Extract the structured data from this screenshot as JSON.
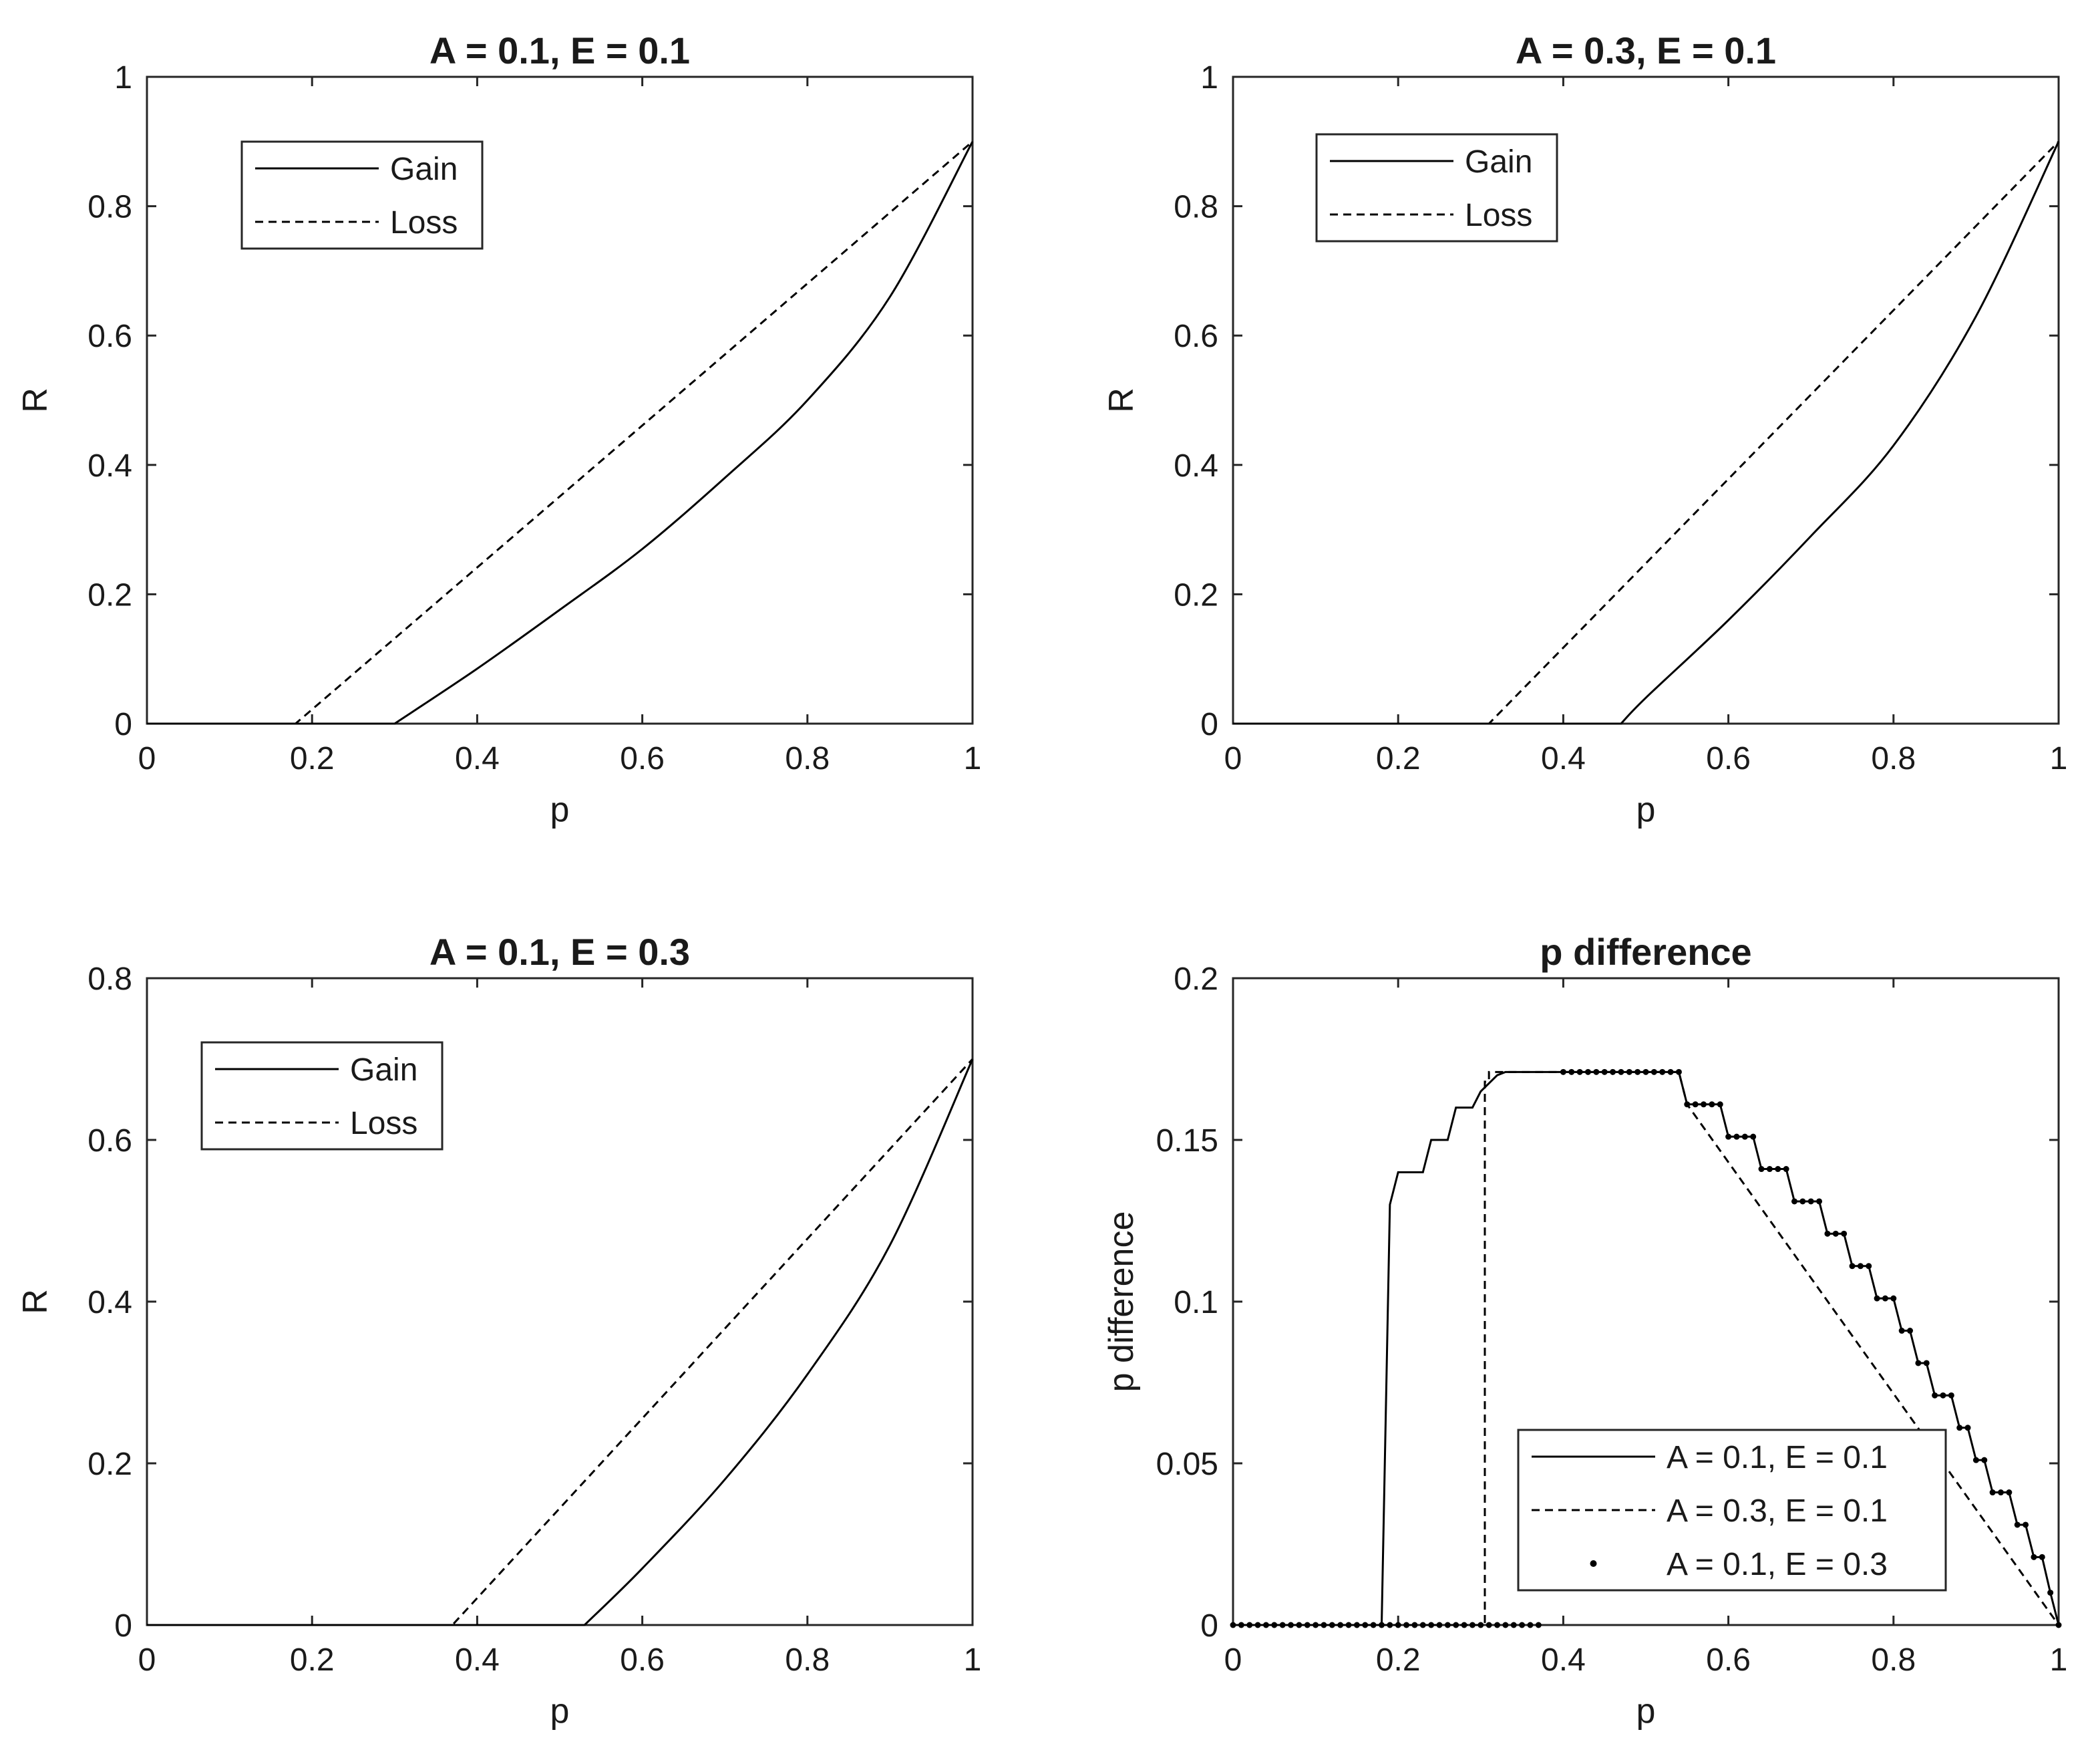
{
  "chart_data": [
    {
      "type": "line",
      "title": "A = 0.1, E = 0.1",
      "xlabel": "p",
      "ylabel": "R",
      "xlim": [
        0,
        1
      ],
      "ylim": [
        0,
        1
      ],
      "xticks": [
        "0",
        "0.2",
        "0.4",
        "0.6",
        "0.8",
        "1"
      ],
      "yticks": [
        "0",
        "0.2",
        "0.4",
        "0.6",
        "0.8",
        "1"
      ],
      "legend_position": "top-left",
      "series": [
        {
          "name": "Gain",
          "style": "solid",
          "x": [
            0,
            0.3,
            0.4,
            0.5,
            0.6,
            0.7,
            0.8,
            0.9,
            1
          ],
          "y": [
            0,
            0,
            0.085,
            0.176,
            0.27,
            0.38,
            0.5,
            0.66,
            0.9
          ]
        },
        {
          "name": "Loss",
          "style": "dashed",
          "x": [
            0,
            0.18,
            1
          ],
          "y": [
            0,
            0,
            0.9
          ]
        }
      ]
    },
    {
      "type": "line",
      "title": "A = 0.3, E = 0.1",
      "xlabel": "p",
      "ylabel": "R",
      "xlim": [
        0,
        1
      ],
      "ylim": [
        0,
        1
      ],
      "xticks": [
        "0",
        "0.2",
        "0.4",
        "0.6",
        "0.8",
        "1"
      ],
      "yticks": [
        "0",
        "0.2",
        "0.4",
        "0.6",
        "0.8",
        "1"
      ],
      "legend_position": "top-left",
      "series": [
        {
          "name": "Gain",
          "style": "solid",
          "x": [
            0,
            0.47,
            0.5,
            0.6,
            0.7,
            0.8,
            0.9,
            1
          ],
          "y": [
            0,
            0,
            0.04,
            0.16,
            0.29,
            0.43,
            0.63,
            0.9
          ]
        },
        {
          "name": "Loss",
          "style": "dashed",
          "x": [
            0,
            0.31,
            1
          ],
          "y": [
            0,
            0,
            0.9
          ]
        }
      ]
    },
    {
      "type": "line",
      "title": "A = 0.1, E = 0.3",
      "xlabel": "p",
      "ylabel": "R",
      "xlim": [
        0,
        1
      ],
      "ylim": [
        0,
        0.8
      ],
      "xticks": [
        "0",
        "0.2",
        "0.4",
        "0.6",
        "0.8",
        "1"
      ],
      "yticks": [
        "0",
        "0.2",
        "0.4",
        "0.6",
        "0.8"
      ],
      "legend_position": "top-left",
      "series": [
        {
          "name": "Gain",
          "style": "solid",
          "x": [
            0,
            0.53,
            0.6,
            0.7,
            0.8,
            0.9,
            1
          ],
          "y": [
            0,
            0,
            0.07,
            0.18,
            0.31,
            0.47,
            0.7
          ]
        },
        {
          "name": "Loss",
          "style": "dashed",
          "x": [
            0,
            0.37,
            1
          ],
          "y": [
            0,
            0,
            0.7
          ]
        }
      ]
    },
    {
      "type": "line",
      "title": "p difference",
      "xlabel": "p",
      "ylabel": "p difference",
      "xlim": [
        0,
        1
      ],
      "ylim": [
        0,
        0.2
      ],
      "xticks": [
        "0",
        "0.2",
        "0.4",
        "0.6",
        "0.8",
        "1"
      ],
      "yticks": [
        "0",
        "0.05",
        "0.1",
        "0.15",
        "0.2"
      ],
      "legend_position": "bottom-right",
      "series": [
        {
          "name": "A = 0.1, E = 0.1",
          "style": "solid",
          "x": [
            0,
            0.18,
            0.19,
            0.2,
            0.23,
            0.24,
            0.26,
            0.27,
            0.29,
            0.3,
            0.32,
            0.33,
            0.54,
            0.55,
            0.59,
            0.6,
            0.63,
            0.64,
            0.67,
            0.68,
            0.71,
            0.72,
            0.74,
            0.75,
            0.77,
            0.78,
            0.8,
            0.81,
            0.82,
            0.83,
            0.84,
            0.85,
            0.87,
            0.88,
            0.89,
            0.9,
            0.91,
            0.92,
            0.94,
            0.95,
            0.96,
            0.97,
            0.98,
            0.99,
            1
          ],
          "y": [
            0,
            0,
            0.13,
            0.14,
            0.14,
            0.15,
            0.15,
            0.16,
            0.16,
            0.165,
            0.17,
            0.171,
            0.171,
            0.161,
            0.161,
            0.151,
            0.151,
            0.141,
            0.141,
            0.131,
            0.131,
            0.121,
            0.121,
            0.111,
            0.111,
            0.101,
            0.101,
            0.091,
            0.091,
            0.081,
            0.081,
            0.071,
            0.071,
            0.061,
            0.061,
            0.051,
            0.051,
            0.041,
            0.041,
            0.031,
            0.031,
            0.021,
            0.021,
            0.01,
            0
          ]
        },
        {
          "name": "A = 0.3, E = 0.1",
          "style": "dashed",
          "x": [
            0,
            0.305,
            0.305,
            0.31,
            0.31,
            0.54,
            0.55,
            1
          ],
          "y": [
            0,
            0,
            0.168,
            0.168,
            0.171,
            0.171,
            0.161,
            0
          ]
        },
        {
          "name": "A = 0.1, E = 0.3",
          "style": "dots",
          "x": [
            0,
            0.37,
            0.4,
            0.54,
            0.54,
            1
          ],
          "y": [
            0,
            0,
            0.171,
            0.171,
            0.161,
            0
          ],
          "note": "dotted markers on zero line 0-0.37, plateau 0.4-0.54, and along the steps 0.54-1"
        }
      ]
    }
  ]
}
